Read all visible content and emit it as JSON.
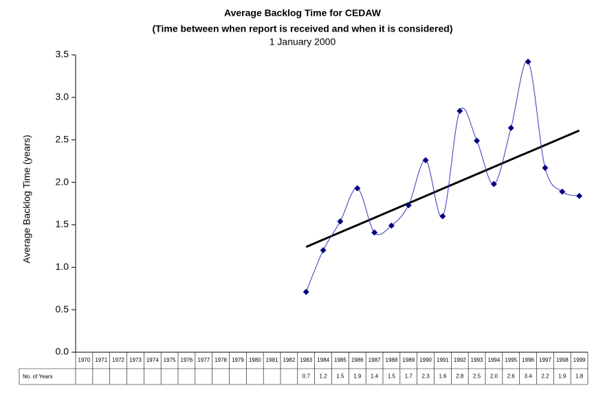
{
  "chart_data": {
    "type": "line",
    "title": "Average Backlog Time for CEDAW",
    "subtitle": "(Time between when report is received and when it is considered)",
    "date": "1 January 2000",
    "y_label": "Average Backlog Time (years)",
    "table_label": "No. of Years",
    "categories": [
      "1970",
      "1971",
      "1972",
      "1973",
      "1974",
      "1975",
      "1976",
      "1977",
      "1978",
      "1979",
      "1980",
      "1981",
      "1982",
      "1983",
      "1984",
      "1985",
      "1986",
      "1987",
      "1988",
      "1989",
      "1990",
      "1991",
      "1992",
      "1993",
      "1994",
      "1995",
      "1996",
      "1997",
      "1998",
      "1999"
    ],
    "values": [
      null,
      null,
      null,
      null,
      null,
      null,
      null,
      null,
      null,
      null,
      null,
      null,
      null,
      0.71,
      1.2,
      1.54,
      1.93,
      1.41,
      1.49,
      1.73,
      2.26,
      1.6,
      2.84,
      2.49,
      1.98,
      2.64,
      3.42,
      2.17,
      1.89,
      1.84
    ],
    "value_labels": [
      null,
      null,
      null,
      null,
      null,
      null,
      null,
      null,
      null,
      null,
      null,
      null,
      null,
      "0.7",
      "1.2",
      "1.5",
      "1.9",
      "1.4",
      "1.5",
      "1.7",
      "2.3",
      "1.6",
      "2.8",
      "2.5",
      "2.0",
      "2.6",
      "3.4",
      "2.2",
      "1.9",
      "1.8"
    ],
    "color": "#000080",
    "line_color": "#3333bb",
    "trendline": {
      "from": "1983",
      "to": "1999",
      "values": [
        1.24,
        2.61
      ],
      "color": "#000000"
    },
    "ylim": [
      0,
      3.5
    ],
    "yticks": [
      {
        "value": 0,
        "label": "0.0"
      },
      0.5,
      {
        "value": 1,
        "label": "1.0"
      },
      1.5,
      {
        "value": 2,
        "label": "2.0"
      },
      2.5,
      {
        "value": 3,
        "label": "3.0"
      },
      3.5
    ]
  }
}
